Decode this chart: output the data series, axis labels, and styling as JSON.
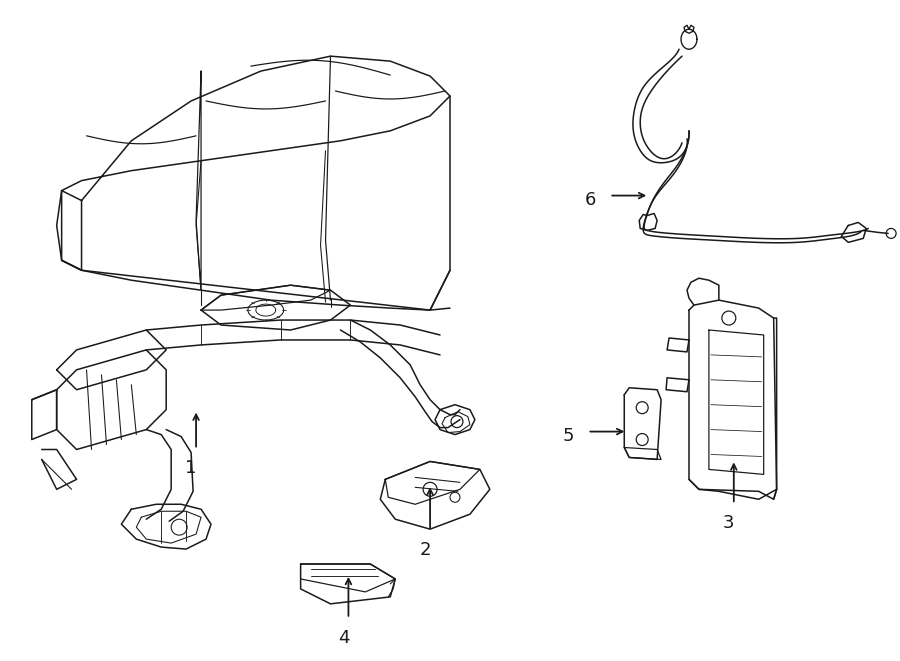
{
  "background_color": "#ffffff",
  "line_color": "#1a1a1a",
  "line_width": 1.1,
  "figure_width": 9.0,
  "figure_height": 6.61,
  "dpi": 100
}
